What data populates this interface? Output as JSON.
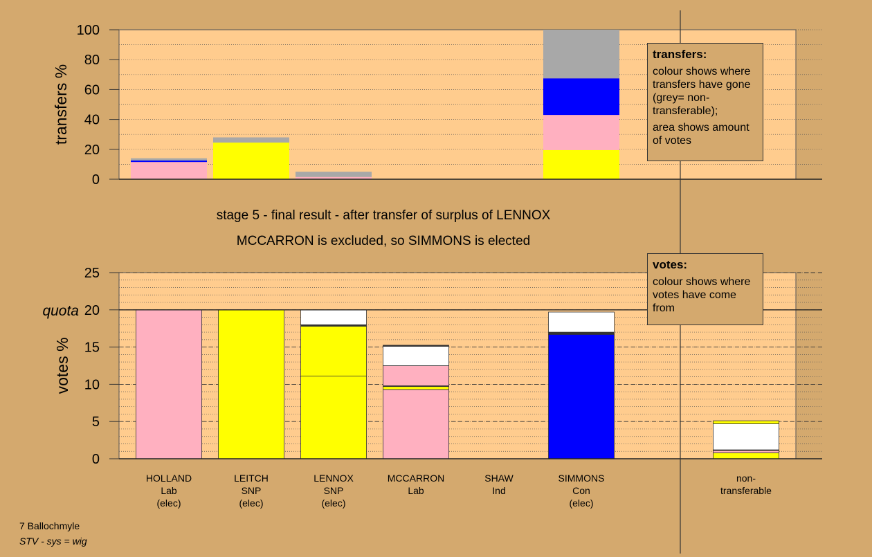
{
  "chart_data": [
    {
      "type": "bar",
      "stacked": true,
      "ylabel": "transfers %",
      "ylim": [
        0,
        100
      ],
      "yticks": [
        0,
        20,
        40,
        60,
        80,
        100
      ],
      "grid": true,
      "bars": [
        {
          "segments": [
            {
              "value": 11.5,
              "color": "#ffb0c0"
            },
            {
              "value": 1,
              "color": "#0000ff"
            },
            {
              "value": 1.5,
              "color": "#a8a8a8"
            }
          ]
        },
        {
          "segments": [
            {
              "value": 24.5,
              "color": "#ffff00"
            },
            {
              "value": 3.5,
              "color": "#a8a8a8"
            }
          ]
        },
        {
          "segments": [
            {
              "value": 1.5,
              "color": "#ffb0c0"
            },
            {
              "value": 3.5,
              "color": "#a8a8a8"
            }
          ]
        },
        {
          "segments": []
        },
        {
          "segments": []
        },
        {
          "segments": [
            {
              "value": 19.5,
              "color": "#ffff00"
            },
            {
              "value": 23.5,
              "color": "#ffb0c0"
            },
            {
              "value": 24.5,
              "color": "#0000ff"
            },
            {
              "value": 32.5,
              "color": "#a8a8a8"
            }
          ]
        },
        {
          "segments": []
        }
      ]
    },
    {
      "type": "bar",
      "stacked": true,
      "ylabel": "votes %",
      "ylim": [
        0,
        25
      ],
      "yticks": [
        0,
        5,
        10,
        15,
        20,
        25
      ],
      "quota": 20,
      "quota_label": "quota",
      "grid": true,
      "bars": [
        {
          "segments": [
            {
              "value": 20,
              "color": "#ffb0c0"
            }
          ]
        },
        {
          "segments": [
            {
              "value": 20,
              "color": "#ffff00"
            }
          ]
        },
        {
          "segments": [
            {
              "value": 11.1,
              "color": "#ffff00"
            },
            {
              "value": 6.7,
              "color": "#ffff00"
            },
            {
              "value": 0.2,
              "color": "#333333"
            },
            {
              "value": 2.0,
              "color": "#ffffff"
            }
          ]
        },
        {
          "segments": [
            {
              "value": 9.3,
              "color": "#ffb0c0"
            },
            {
              "value": 0.4,
              "color": "#ffff00"
            },
            {
              "value": 0.1,
              "color": "#333333"
            },
            {
              "value": 2.7,
              "color": "#ffb0c0"
            },
            {
              "value": 2.6,
              "color": "#ffffff"
            },
            {
              "value": 0.15,
              "color": "#333333"
            }
          ]
        },
        {
          "segments": []
        },
        {
          "segments": [
            {
              "value": 16.7,
              "color": "#0000ff"
            },
            {
              "value": 0.3,
              "color": "#333333"
            },
            {
              "value": 2.7,
              "color": "#ffffff"
            }
          ]
        },
        {
          "segments": [
            {
              "value": 0.8,
              "color": "#ffff00"
            },
            {
              "value": 0.3,
              "color": "#ffb0c0"
            },
            {
              "value": 0.1,
              "color": "#333333"
            },
            {
              "value": 3.5,
              "color": "#ffffff"
            },
            {
              "value": 0.4,
              "color": "#ffff00"
            }
          ]
        }
      ],
      "categories": [
        [
          "HOLLAND",
          "Lab",
          "(elec)"
        ],
        [
          "LEITCH",
          "SNP",
          "(elec)"
        ],
        [
          "LENNOX",
          "SNP",
          "(elec)"
        ],
        [
          "MCCARRON",
          "Lab"
        ],
        [
          "SHAW",
          "Ind"
        ],
        [
          "SIMMONS",
          "Con",
          "(elec)"
        ],
        [
          "non-",
          "transferable"
        ]
      ]
    }
  ],
  "colors": {
    "background": "#d4a96e",
    "plot_area": "#ffcc8e",
    "labour": "#ffb0c0",
    "snp": "#ffff00",
    "conservative": "#0000ff",
    "non_transferable": "#a8a8a8"
  },
  "legends": {
    "transfers": {
      "title": "transfers:",
      "line1": "colour shows where transfers have gone (grey= non-transferable);",
      "line2": "area shows amount of votes"
    },
    "votes": {
      "title": "votes:",
      "line1": "colour shows where votes have come from"
    }
  },
  "captions": {
    "stage": "stage 5 - final result - after transfer of surplus of LENNOX",
    "outcome": "MCCARRON is excluded, so SIMMONS is elected"
  },
  "footer": {
    "ward": "7 Ballochmyle",
    "system": "STV - sys = wig"
  }
}
